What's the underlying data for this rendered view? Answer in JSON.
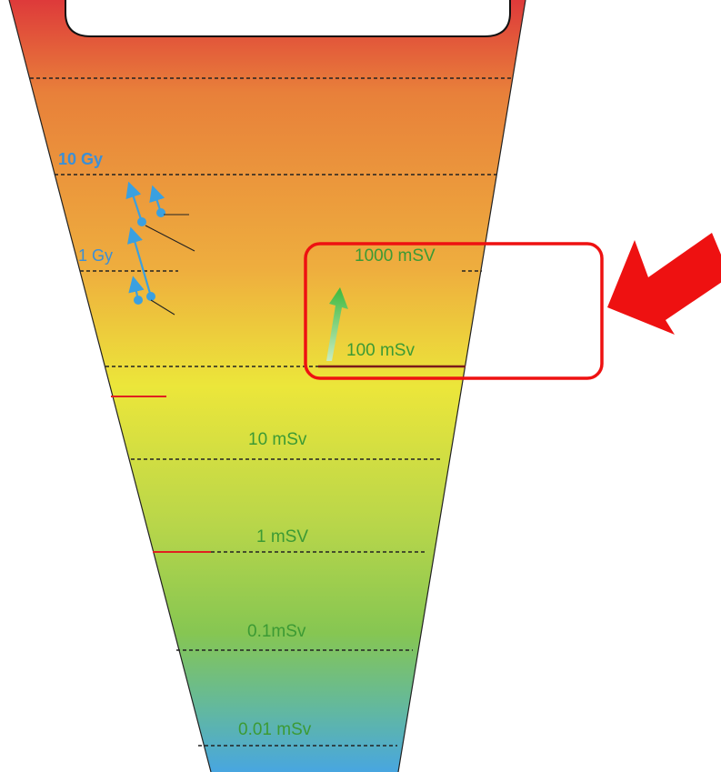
{
  "diagram": {
    "levels": [
      {
        "key": "gy10",
        "text": "10 Gy"
      },
      {
        "key": "gy1",
        "text": "1 Gy"
      },
      {
        "key": "ms1000",
        "text": "1000 mSV"
      },
      {
        "key": "ms100",
        "text": "100 mSv"
      },
      {
        "key": "ms10",
        "text": "10 mSv"
      },
      {
        "key": "ms1",
        "text": "1 mSV"
      },
      {
        "key": "ms01",
        "text": "0.1mSv"
      },
      {
        "key": "ms001",
        "text": "0.01 mSv"
      }
    ],
    "colors": {
      "gradient": [
        "#de3a3a",
        "#e8863a",
        "#eeb43e",
        "#eae43a",
        "#bed84a",
        "#88c850",
        "#60b8a0",
        "#4aa8dc"
      ],
      "label_green": "#3c9a34",
      "label_blue": "#3b8fd6",
      "highlight": "#ee1111",
      "arrow_green": "#44bb44",
      "arrow_blue": "#3aa0e0"
    }
  }
}
